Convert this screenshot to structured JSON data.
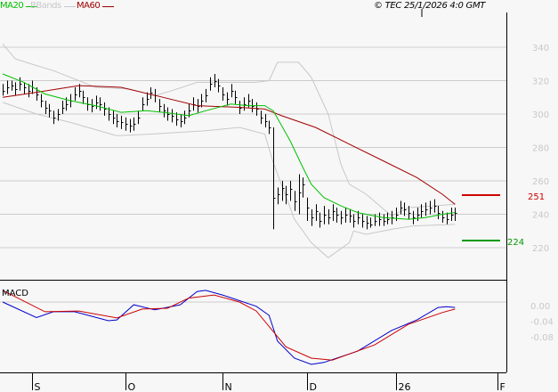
{
  "legend": [
    {
      "label": "MA20",
      "color": "#00c000"
    },
    {
      "label": "BBands",
      "color": "#c8c8c8"
    },
    {
      "label": "MA60",
      "color": "#a00000"
    }
  ],
  "copyright": "© TEC 25/1/2026 4:0 GMT",
  "macd_label": "MACD",
  "chart_data": [
    {
      "type": "ohlc",
      "ylim": [
        210,
        350
      ],
      "yticks": [
        "340",
        "320",
        "300",
        "280",
        "260",
        "240",
        "220"
      ],
      "xticks": [
        {
          "label": "S",
          "bar": 7
        },
        {
          "label": "O",
          "bar": 29
        },
        {
          "label": "N",
          "bar": 52
        },
        {
          "label": "D",
          "bar": 72
        },
        {
          "label": "26",
          "bar": 93
        },
        {
          "label": "F",
          "bar": 117
        }
      ],
      "bars_hlc": [
        [
          318,
          311,
          314
        ],
        [
          320,
          312,
          316
        ],
        [
          320,
          314,
          317
        ],
        [
          319,
          311,
          315
        ],
        [
          322,
          314,
          318
        ],
        [
          319,
          312,
          316
        ],
        [
          318,
          310,
          314
        ],
        [
          320,
          312,
          316
        ],
        [
          316,
          308,
          312
        ],
        [
          312,
          304,
          308
        ],
        [
          308,
          300,
          304
        ],
        [
          306,
          298,
          302
        ],
        [
          302,
          294,
          298
        ],
        [
          303,
          296,
          300
        ],
        [
          308,
          300,
          304
        ],
        [
          310,
          302,
          306
        ],
        [
          312,
          304,
          308
        ],
        [
          316,
          308,
          312
        ],
        [
          318,
          310,
          314
        ],
        [
          314,
          306,
          310
        ],
        [
          310,
          302,
          306
        ],
        [
          309,
          301,
          305
        ],
        [
          311,
          303,
          307
        ],
        [
          310,
          302,
          306
        ],
        [
          307,
          299,
          303
        ],
        [
          304,
          296,
          300
        ],
        [
          302,
          294,
          298
        ],
        [
          300,
          292,
          296
        ],
        [
          299,
          291,
          295
        ],
        [
          298,
          290,
          294
        ],
        [
          297,
          289,
          293
        ],
        [
          298,
          290,
          294
        ],
        [
          302,
          294,
          298
        ],
        [
          310,
          302,
          306
        ],
        [
          313,
          305,
          309
        ],
        [
          316,
          309,
          313
        ],
        [
          315,
          307,
          311
        ],
        [
          309,
          301,
          305
        ],
        [
          306,
          298,
          302
        ],
        [
          304,
          296,
          300
        ],
        [
          303,
          295,
          299
        ],
        [
          301,
          293,
          297
        ],
        [
          300,
          292,
          296
        ],
        [
          302,
          294,
          298
        ],
        [
          306,
          298,
          302
        ],
        [
          310,
          302,
          306
        ],
        [
          309,
          301,
          305
        ],
        [
          312,
          304,
          308
        ],
        [
          315,
          307,
          311
        ],
        [
          322,
          314,
          318
        ],
        [
          324,
          316,
          320
        ],
        [
          321,
          313,
          317
        ],
        [
          316,
          308,
          312
        ],
        [
          313,
          305,
          309
        ],
        [
          318,
          310,
          314
        ],
        [
          314,
          306,
          310
        ],
        [
          308,
          300,
          304
        ],
        [
          310,
          302,
          306
        ],
        [
          312,
          304,
          308
        ],
        [
          309,
          301,
          305
        ],
        [
          307,
          299,
          303
        ],
        [
          302,
          294,
          298
        ],
        [
          300,
          292,
          296
        ],
        [
          296,
          288,
          292
        ],
        [
          292,
          231,
          250
        ],
        [
          256,
          246,
          252
        ],
        [
          260,
          248,
          256
        ],
        [
          257,
          246,
          252
        ],
        [
          260,
          248,
          255
        ],
        [
          254,
          242,
          248
        ],
        [
          264,
          240,
          253
        ],
        [
          262,
          250,
          258
        ],
        [
          250,
          236,
          244
        ],
        [
          243,
          233,
          238
        ],
        [
          246,
          236,
          242
        ],
        [
          241,
          232,
          236
        ],
        [
          245,
          234,
          240
        ],
        [
          243,
          234,
          238
        ],
        [
          246,
          236,
          242
        ],
        [
          244,
          235,
          240
        ],
        [
          242,
          234,
          238
        ],
        [
          244,
          235,
          240
        ],
        [
          243,
          235,
          239
        ],
        [
          240,
          232,
          236
        ],
        [
          242,
          234,
          238
        ],
        [
          240,
          232,
          236
        ],
        [
          239,
          231,
          235
        ],
        [
          238,
          232,
          234
        ],
        [
          240,
          233,
          236
        ],
        [
          241,
          233,
          237
        ],
        [
          240,
          233,
          236
        ],
        [
          241,
          234,
          237
        ],
        [
          242,
          234,
          238
        ],
        [
          244,
          236,
          240
        ],
        [
          248,
          240,
          244
        ],
        [
          247,
          239,
          243
        ],
        [
          245,
          237,
          241
        ],
        [
          242,
          234,
          238
        ],
        [
          244,
          236,
          240
        ],
        [
          246,
          238,
          242
        ],
        [
          247,
          239,
          243
        ],
        [
          248,
          240,
          244
        ],
        [
          249,
          241,
          245
        ],
        [
          245,
          237,
          241
        ],
        [
          242,
          235,
          238
        ],
        [
          241,
          234,
          237
        ],
        [
          244,
          236,
          240
        ],
        [
          244,
          236,
          241
        ]
      ],
      "ma20": [
        [
          0,
          324
        ],
        [
          5,
          319
        ],
        [
          10,
          312
        ],
        [
          16,
          308
        ],
        [
          22,
          305
        ],
        [
          28,
          301
        ],
        [
          34,
          302
        ],
        [
          38,
          301
        ],
        [
          44,
          299
        ],
        [
          48,
          302
        ],
        [
          54,
          306
        ],
        [
          58,
          305
        ],
        [
          62,
          305
        ],
        [
          64,
          302
        ],
        [
          66,
          293
        ],
        [
          68,
          284
        ],
        [
          71,
          268
        ],
        [
          73,
          258
        ],
        [
          76,
          250
        ],
        [
          80,
          245
        ],
        [
          84,
          241
        ],
        [
          90,
          238
        ],
        [
          96,
          237
        ],
        [
          100,
          238
        ],
        [
          104,
          240
        ],
        [
          107,
          241
        ]
      ],
      "ma60": [
        [
          0,
          310
        ],
        [
          8,
          313
        ],
        [
          18,
          317
        ],
        [
          28,
          316
        ],
        [
          38,
          310
        ],
        [
          46,
          305
        ],
        [
          56,
          304
        ],
        [
          62,
          303
        ],
        [
          66,
          299
        ],
        [
          74,
          292
        ],
        [
          82,
          282
        ],
        [
          90,
          272
        ],
        [
          98,
          262
        ],
        [
          104,
          252
        ],
        [
          107,
          246
        ]
      ],
      "bb_upper": [
        [
          0,
          342
        ],
        [
          3,
          333
        ],
        [
          8,
          329
        ],
        [
          12,
          326
        ],
        [
          18,
          320
        ],
        [
          22,
          316
        ],
        [
          30,
          315
        ],
        [
          36,
          311
        ],
        [
          40,
          314
        ],
        [
          46,
          319
        ],
        [
          60,
          319
        ],
        [
          63,
          320
        ],
        [
          65,
          331
        ],
        [
          70,
          331
        ],
        [
          73,
          322
        ],
        [
          77,
          300
        ],
        [
          80,
          270
        ],
        [
          82,
          258
        ],
        [
          86,
          252
        ],
        [
          92,
          239
        ],
        [
          96,
          244
        ],
        [
          107,
          246
        ]
      ],
      "bb_lower": [
        [
          0,
          307
        ],
        [
          8,
          300
        ],
        [
          16,
          295
        ],
        [
          27,
          287
        ],
        [
          35,
          288
        ],
        [
          48,
          290
        ],
        [
          56,
          292
        ],
        [
          62,
          288
        ],
        [
          64,
          271
        ],
        [
          69,
          237
        ],
        [
          73,
          223
        ],
        [
          77,
          214
        ],
        [
          82,
          223
        ],
        [
          83,
          230
        ],
        [
          86,
          228
        ],
        [
          92,
          231
        ],
        [
          97,
          233
        ],
        [
          107,
          234
        ]
      ],
      "levels": [
        {
          "value": "251",
          "color": "#cc0000"
        },
        {
          "value": "224",
          "color": "#009900"
        }
      ]
    },
    {
      "type": "line",
      "title": "MACD",
      "yticks": [
        "0.00",
        "-0.04",
        "-0.08"
      ],
      "series": [
        {
          "color": "#0000cc",
          "points": [
            [
              0,
              0.0
            ],
            [
              8,
              -0.04
            ],
            [
              12,
              -0.025
            ],
            [
              17,
              -0.025
            ],
            [
              25,
              -0.048
            ],
            [
              27,
              -0.046
            ],
            [
              31,
              -0.007
            ],
            [
              36,
              -0.02
            ],
            [
              42,
              -0.007
            ],
            [
              46,
              0.027
            ],
            [
              48,
              0.03
            ],
            [
              52,
              0.018
            ],
            [
              60,
              -0.011
            ],
            [
              63,
              -0.034
            ],
            [
              65,
              -0.1
            ],
            [
              69,
              -0.144
            ],
            [
              73,
              -0.16
            ],
            [
              76,
              -0.155
            ],
            [
              84,
              -0.126
            ],
            [
              92,
              -0.073
            ],
            [
              98,
              -0.046
            ],
            [
              103,
              -0.014
            ],
            [
              105,
              -0.012
            ],
            [
              107,
              -0.014
            ]
          ]
        },
        {
          "color": "#cc0000",
          "points": [
            [
              0,
              0.03
            ],
            [
              10,
              -0.025
            ],
            [
              18,
              -0.023
            ],
            [
              27,
              -0.041
            ],
            [
              33,
              -0.018
            ],
            [
              39,
              -0.016
            ],
            [
              44,
              0.01
            ],
            [
              50,
              0.018
            ],
            [
              56,
              0.0
            ],
            [
              60,
              -0.023
            ],
            [
              67,
              -0.115
            ],
            [
              73,
              -0.144
            ],
            [
              78,
              -0.149
            ],
            [
              88,
              -0.11
            ],
            [
              96,
              -0.057
            ],
            [
              104,
              -0.027
            ],
            [
              107,
              -0.018
            ]
          ]
        }
      ]
    }
  ]
}
